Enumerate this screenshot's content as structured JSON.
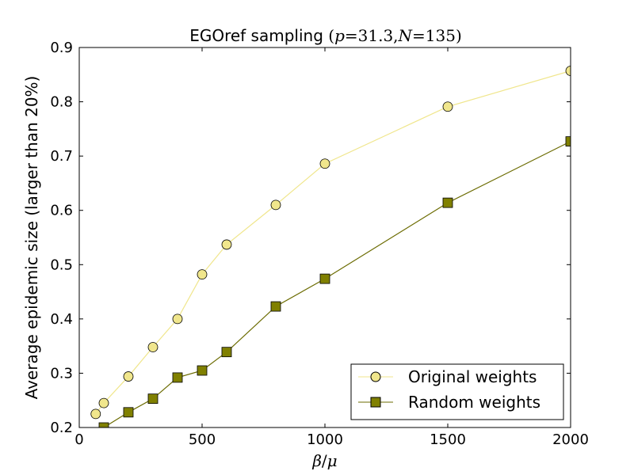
{
  "chart_data": {
    "type": "line",
    "title_text": "EGOref sampling ",
    "title_math": {
      "open": "(",
      "p_var": "p",
      "eq1": "=",
      "p_val": "31.3",
      "comma": ",",
      "n_var": "N",
      "eq2": "=",
      "n_val": "135",
      "close": ")"
    },
    "xlabel_math": {
      "beta": "β",
      "slash": "/",
      "mu": "μ"
    },
    "ylabel": "Average epidemic size (larger than 20%)",
    "xlim": [
      0,
      2000
    ],
    "ylim": [
      0.2,
      0.9
    ],
    "x_ticks": [
      0,
      500,
      1000,
      1500,
      2000
    ],
    "x_tick_labels": [
      "0",
      "500",
      "1000",
      "1500",
      "2000"
    ],
    "y_ticks": [
      0.2,
      0.3,
      0.4,
      0.5,
      0.6,
      0.7,
      0.8,
      0.9
    ],
    "y_tick_labels": [
      "0.2",
      "0.3",
      "0.4",
      "0.5",
      "0.6",
      "0.7",
      "0.8",
      "0.9"
    ],
    "grid": false,
    "legend_position": "bottom-right",
    "series": [
      {
        "name": "Original weights",
        "marker": "circle",
        "line_color": "#f0e68c",
        "fill_color": "#f0e68c",
        "x": [
          67,
          100,
          200,
          300,
          400,
          500,
          600,
          800,
          1000,
          1500,
          2000
        ],
        "y": [
          0.225,
          0.245,
          0.294,
          0.348,
          0.4,
          0.482,
          0.537,
          0.61,
          0.686,
          0.791,
          0.857
        ]
      },
      {
        "name": "Random weights",
        "marker": "square",
        "line_color": "#6b6b00",
        "fill_color": "#808000",
        "x": [
          100,
          200,
          300,
          400,
          500,
          600,
          800,
          1000,
          1500,
          2000
        ],
        "y": [
          0.2,
          0.228,
          0.253,
          0.292,
          0.305,
          0.339,
          0.423,
          0.474,
          0.614,
          0.727
        ]
      }
    ]
  }
}
